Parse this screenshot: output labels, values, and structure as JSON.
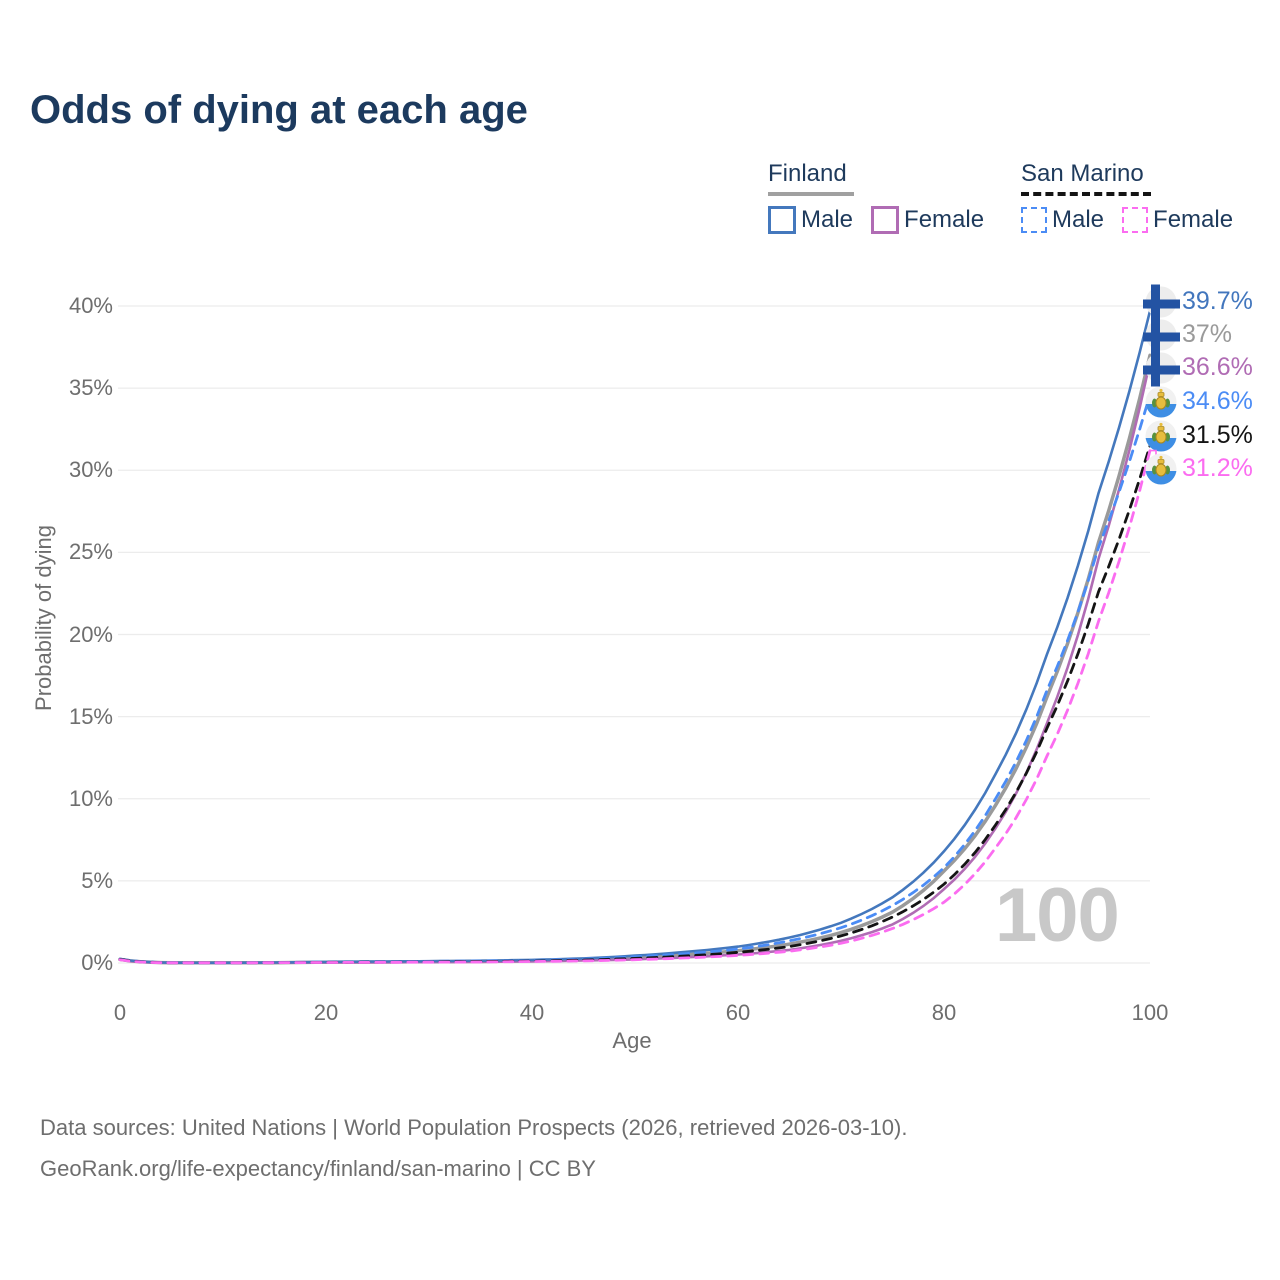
{
  "title": "Odds of dying at each age",
  "legend": {
    "groups": [
      {
        "name": "Finland",
        "line_style": "solid",
        "underline_color": "#a0a0a0",
        "items": [
          {
            "label": "Male",
            "color": "#4478bd"
          },
          {
            "label": "Female",
            "color": "#b06cb4"
          }
        ]
      },
      {
        "name": "San Marino",
        "line_style": "dashed",
        "underline_color": "#141414",
        "items": [
          {
            "label": "Male",
            "color": "#4b8cf5"
          },
          {
            "label": "Female",
            "color": "#fb6cf0"
          }
        ]
      }
    ]
  },
  "watermark": "100",
  "footer": {
    "line1": "Data sources: United Nations | World Population Prospects (2026, retrieved 2026-03-10).",
    "line2": "GeoRank.org/life-expectancy/finland/san-marino | CC BY"
  },
  "chart_data": {
    "type": "line",
    "title": "Odds of dying at each age",
    "xlabel": "Age",
    "ylabel": "Probability of dying",
    "xlim": [
      0,
      100
    ],
    "ylim": [
      0,
      40
    ],
    "grid": "horizontal",
    "legend_position": "top-right",
    "x_ticks": [
      {
        "v": 0,
        "label": "0"
      },
      {
        "v": 20,
        "label": "20"
      },
      {
        "v": 40,
        "label": "40"
      },
      {
        "v": 60,
        "label": "60"
      },
      {
        "v": 80,
        "label": "80"
      },
      {
        "v": 100,
        "label": "100"
      }
    ],
    "y_ticks": [
      {
        "v": 0,
        "label": "0%"
      },
      {
        "v": 5,
        "label": "5%"
      },
      {
        "v": 10,
        "label": "10%"
      },
      {
        "v": 15,
        "label": "15%"
      },
      {
        "v": 20,
        "label": "20%"
      },
      {
        "v": 25,
        "label": "25%"
      },
      {
        "v": 30,
        "label": "30%"
      },
      {
        "v": 35,
        "label": "35%"
      },
      {
        "v": 40,
        "label": "40%"
      }
    ],
    "x": [
      0,
      5,
      10,
      15,
      20,
      25,
      30,
      35,
      40,
      45,
      50,
      55,
      60,
      65,
      70,
      75,
      80,
      85,
      90,
      95,
      100
    ],
    "series": [
      {
        "id": "finland-both",
        "name": "Finland Both sexes",
        "country": "Finland",
        "sex": "Both",
        "color": "#9a9a9a",
        "dash": "solid",
        "width": 3.5,
        "flag": "finland",
        "values": [
          0.22,
          0.015,
          0.01,
          0.02,
          0.05,
          0.06,
          0.08,
          0.1,
          0.14,
          0.21,
          0.33,
          0.5,
          0.75,
          1.15,
          1.85,
          3.1,
          5.6,
          9.6,
          16.2,
          25.6,
          37.0
        ],
        "end_label": "37%",
        "end_label_color": "#9a9a9a"
      },
      {
        "id": "finland-female",
        "name": "Finland Female",
        "country": "Finland",
        "sex": "Female",
        "color": "#b06cb4",
        "dash": "solid",
        "width": 2.6,
        "flag": "finland",
        "values": [
          0.2,
          0.01,
          0.01,
          0.02,
          0.03,
          0.04,
          0.05,
          0.07,
          0.1,
          0.15,
          0.22,
          0.35,
          0.52,
          0.8,
          1.35,
          2.35,
          4.5,
          8.2,
          14.6,
          24.6,
          36.6
        ],
        "end_label": "36.6%",
        "end_label_color": "#b06cb4"
      },
      {
        "id": "finland-male",
        "name": "Finland Male",
        "country": "Finland",
        "sex": "Male",
        "color": "#4478bd",
        "dash": "solid",
        "width": 2.6,
        "flag": "finland",
        "values": [
          0.25,
          0.02,
          0.01,
          0.03,
          0.07,
          0.09,
          0.11,
          0.14,
          0.19,
          0.28,
          0.45,
          0.68,
          1.0,
          1.55,
          2.45,
          4.0,
          6.8,
          11.5,
          18.8,
          28.6,
          39.7
        ],
        "end_label": "39.7%",
        "end_label_color": "#4276bd"
      },
      {
        "id": "sanmarino-male",
        "name": "San Marino Male",
        "country": "San Marino",
        "sex": "Male",
        "color": "#4b8cf5",
        "dash": "dashed",
        "width": 2.8,
        "flag": "san-marino",
        "values": [
          0.24,
          0.02,
          0.01,
          0.03,
          0.06,
          0.08,
          0.1,
          0.12,
          0.16,
          0.24,
          0.38,
          0.57,
          0.85,
          1.35,
          2.15,
          3.5,
          5.8,
          10.0,
          16.6,
          25.3,
          34.6
        ],
        "end_label": "34.6%",
        "end_label_color": "#4b8cf5"
      },
      {
        "id": "sanmarino-both",
        "name": "San Marino Both sexes",
        "country": "San Marino",
        "sex": "Both",
        "color": "#141414",
        "dash": "dashed",
        "width": 2.8,
        "flag": "san-marino",
        "values": [
          0.22,
          0.015,
          0.01,
          0.02,
          0.04,
          0.05,
          0.07,
          0.09,
          0.12,
          0.18,
          0.28,
          0.43,
          0.65,
          1.0,
          1.65,
          2.8,
          4.8,
          8.4,
          14.3,
          22.6,
          31.5
        ],
        "end_label": "31.5%",
        "end_label_color": "#141414"
      },
      {
        "id": "sanmarino-female",
        "name": "San Marino Female",
        "country": "San Marino",
        "sex": "Female",
        "color": "#fb6cf0",
        "dash": "dashed",
        "width": 2.8,
        "flag": "san-marino",
        "values": [
          0.2,
          0.01,
          0.01,
          0.02,
          0.03,
          0.04,
          0.05,
          0.06,
          0.09,
          0.13,
          0.2,
          0.31,
          0.46,
          0.72,
          1.2,
          2.1,
          3.7,
          7.0,
          12.6,
          20.8,
          31.2
        ],
        "end_label": "31.2%",
        "end_label_color": "#fb6cf0"
      }
    ]
  }
}
